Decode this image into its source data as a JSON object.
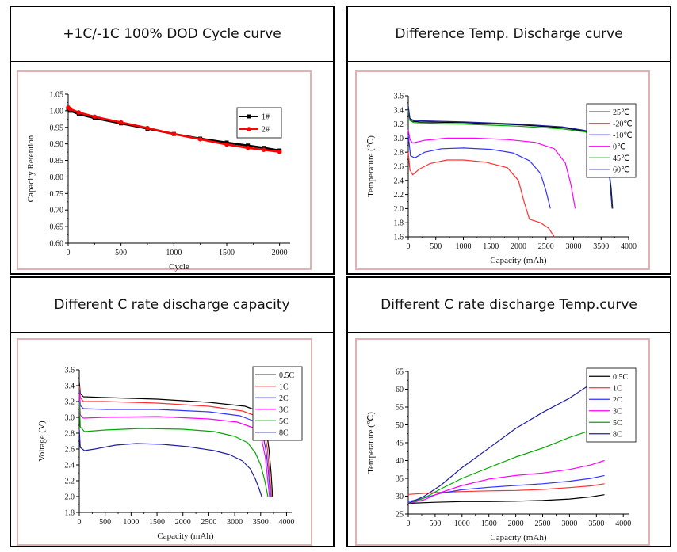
{
  "colors": {
    "frame_border": "#e2b1b1",
    "panel_border": "#000000"
  },
  "panels": {
    "p1": {
      "title": "+1C/-1C 100% DOD  Cycle curve"
    },
    "p2": {
      "title": "Difference Temp. Discharge curve"
    },
    "p3": {
      "title": "Different C rate discharge capacity"
    },
    "p4": {
      "title": "Different C rate discharge Temp.curve"
    }
  },
  "chart_data": [
    {
      "type": "line",
      "xlabel": "Cycle",
      "ylabel": "Capacity Retention",
      "xlim": [
        0,
        2100
      ],
      "ylim": [
        0.6,
        1.05
      ],
      "xticks": [
        "0",
        "500",
        "1000",
        "1500",
        "2000"
      ],
      "yticks": [
        "0.60",
        "0.65",
        "0.70",
        "0.75",
        "0.80",
        "0.85",
        "0.90",
        "0.95",
        "1.00",
        "1.05"
      ],
      "grid": false,
      "legend_position": "top-right",
      "series": [
        {
          "name": "1#",
          "color": "#000000",
          "marker": "square",
          "x": [
            0,
            20,
            100,
            250,
            500,
            750,
            1000,
            1250,
            1500,
            1700,
            1850,
            2000
          ],
          "y": [
            1.005,
            1.0,
            0.99,
            0.978,
            0.962,
            0.946,
            0.93,
            0.916,
            0.904,
            0.895,
            0.888,
            0.88
          ]
        },
        {
          "name": "2#",
          "color": "#ff0000",
          "marker": "circle",
          "x": [
            0,
            20,
            100,
            250,
            500,
            750,
            1000,
            1250,
            1500,
            1700,
            1850,
            2000
          ],
          "y": [
            1.01,
            1.005,
            0.995,
            0.982,
            0.965,
            0.948,
            0.93,
            0.914,
            0.898,
            0.888,
            0.882,
            0.876
          ]
        }
      ]
    },
    {
      "type": "line",
      "xlabel": "Capacity (mAh)",
      "ylabel": "Temperature (℃)",
      "xlim": [
        0,
        4000
      ],
      "ylim": [
        1.6,
        3.6
      ],
      "xticks": [
        "0",
        "500",
        "1000",
        "1500",
        "2000",
        "2500",
        "3000",
        "3500",
        "4000"
      ],
      "yticks": [
        "1.6",
        "1.8",
        "2.0",
        "2.2",
        "2.4",
        "2.6",
        "2.8",
        "3.0",
        "3.2",
        "3.4",
        "3.6"
      ],
      "grid": false,
      "legend_position": "top-right",
      "series": [
        {
          "name": "25℃",
          "color": "#000000",
          "x": [
            0,
            20,
            60,
            200,
            1000,
            2000,
            2800,
            3200,
            3450,
            3550,
            3620,
            3680,
            3710
          ],
          "y": [
            3.45,
            3.3,
            3.24,
            3.23,
            3.22,
            3.19,
            3.15,
            3.1,
            3.05,
            2.95,
            2.7,
            2.3,
            2.0
          ]
        },
        {
          "name": "-20℃",
          "color": "#ff3030",
          "x": [
            0,
            30,
            80,
            200,
            400,
            700,
            1000,
            1400,
            1800,
            2000,
            2100,
            2200,
            2400,
            2550,
            2650
          ],
          "y": [
            2.8,
            2.55,
            2.48,
            2.56,
            2.64,
            2.69,
            2.69,
            2.66,
            2.58,
            2.4,
            2.1,
            1.85,
            1.8,
            1.72,
            1.6
          ]
        },
        {
          "name": "-10℃",
          "color": "#3333ff",
          "x": [
            0,
            40,
            120,
            300,
            600,
            1000,
            1500,
            1900,
            2200,
            2400,
            2500,
            2580
          ],
          "y": [
            3.05,
            2.75,
            2.72,
            2.8,
            2.85,
            2.86,
            2.84,
            2.79,
            2.68,
            2.5,
            2.25,
            2.0
          ]
        },
        {
          "name": "0℃",
          "color": "#ff00ff",
          "x": [
            0,
            30,
            80,
            300,
            700,
            1200,
            1800,
            2300,
            2650,
            2850,
            2950,
            3030
          ],
          "y": [
            3.12,
            2.98,
            2.93,
            2.97,
            3.0,
            3.0,
            2.98,
            2.94,
            2.85,
            2.65,
            2.35,
            2.0
          ]
        },
        {
          "name": "45℃",
          "color": "#00aa00",
          "x": [
            0,
            30,
            100,
            500,
            1000,
            2000,
            2800,
            3200,
            3450,
            3560,
            3640,
            3700
          ],
          "y": [
            3.4,
            3.25,
            3.22,
            3.21,
            3.2,
            3.17,
            3.13,
            3.09,
            3.03,
            2.9,
            2.6,
            2.0
          ]
        },
        {
          "name": "60℃",
          "color": "#1f1fa0",
          "x": [
            0,
            30,
            100,
            500,
            1000,
            2000,
            2800,
            3200,
            3450,
            3560,
            3640,
            3700
          ],
          "y": [
            3.45,
            3.28,
            3.25,
            3.24,
            3.23,
            3.2,
            3.16,
            3.11,
            3.05,
            2.92,
            2.6,
            2.0
          ]
        }
      ]
    },
    {
      "type": "line",
      "xlabel": "Capacity (mAh)",
      "ylabel": "Voltage (V)",
      "xlim": [
        0,
        4100
      ],
      "ylim": [
        1.8,
        3.6
      ],
      "xticks": [
        "0",
        "500",
        "1000",
        "1500",
        "2000",
        "2500",
        "3000",
        "3500",
        "4000"
      ],
      "yticks": [
        "1.8",
        "2.0",
        "2.2",
        "2.4",
        "2.6",
        "2.8",
        "3.0",
        "3.2",
        "3.4",
        "3.6"
      ],
      "grid": false,
      "legend_position": "top-right",
      "series": [
        {
          "name": "0.5C",
          "color": "#000000",
          "x": [
            0,
            20,
            80,
            500,
            1500,
            2500,
            3200,
            3450,
            3600,
            3660,
            3700,
            3730
          ],
          "y": [
            3.45,
            3.3,
            3.26,
            3.25,
            3.23,
            3.19,
            3.14,
            3.08,
            2.9,
            2.6,
            2.3,
            2.0
          ]
        },
        {
          "name": "1C",
          "color": "#ff3030",
          "x": [
            0,
            20,
            80,
            500,
            1500,
            2500,
            3150,
            3400,
            3560,
            3630,
            3670,
            3710
          ],
          "y": [
            3.4,
            3.25,
            3.2,
            3.2,
            3.18,
            3.14,
            3.08,
            3.02,
            2.85,
            2.6,
            2.3,
            2.0
          ]
        },
        {
          "name": "2C",
          "color": "#3333ff",
          "x": [
            0,
            20,
            80,
            500,
            1500,
            2500,
            3100,
            3380,
            3540,
            3610,
            3650,
            3690
          ],
          "y": [
            3.35,
            3.15,
            3.11,
            3.1,
            3.1,
            3.07,
            3.02,
            2.95,
            2.8,
            2.55,
            2.3,
            2.0
          ]
        },
        {
          "name": "3C",
          "color": "#ff00ff",
          "x": [
            0,
            20,
            80,
            500,
            1500,
            2500,
            3050,
            3350,
            3520,
            3590,
            3630,
            3670
          ],
          "y": [
            3.3,
            3.03,
            2.99,
            3.0,
            3.01,
            2.98,
            2.94,
            2.87,
            2.72,
            2.5,
            2.25,
            2.0
          ]
        },
        {
          "name": "5C",
          "color": "#00aa00",
          "x": [
            0,
            20,
            100,
            500,
            1200,
            2000,
            2600,
            3000,
            3250,
            3400,
            3500,
            3580,
            3640
          ],
          "y": [
            3.2,
            2.88,
            2.82,
            2.84,
            2.86,
            2.85,
            2.82,
            2.76,
            2.68,
            2.55,
            2.4,
            2.2,
            2.0
          ]
        },
        {
          "name": "8C",
          "color": "#1f1fa0",
          "x": [
            0,
            20,
            100,
            300,
            700,
            1100,
            1600,
            2100,
            2600,
            2900,
            3150,
            3300,
            3400,
            3470,
            3520
          ],
          "y": [
            2.85,
            2.62,
            2.58,
            2.6,
            2.65,
            2.67,
            2.66,
            2.63,
            2.58,
            2.53,
            2.45,
            2.35,
            2.22,
            2.1,
            2.0
          ]
        }
      ]
    },
    {
      "type": "line",
      "xlabel": "Capacity (mAh)",
      "ylabel": "Temperature (℃)",
      "xlim": [
        0,
        4100
      ],
      "ylim": [
        25,
        65
      ],
      "xticks": [
        "0",
        "500",
        "1000",
        "1500",
        "2000",
        "2500",
        "3000",
        "3500",
        "4000"
      ],
      "yticks": [
        "25",
        "30",
        "35",
        "40",
        "45",
        "50",
        "55",
        "60",
        "65"
      ],
      "grid": false,
      "legend_position": "top-right",
      "series": [
        {
          "name": "0.5C",
          "color": "#000000",
          "x": [
            0,
            500,
            1000,
            1500,
            2000,
            2500,
            3000,
            3400,
            3650
          ],
          "y": [
            28.0,
            28.3,
            28.5,
            28.5,
            28.6,
            28.8,
            29.2,
            29.8,
            30.4
          ]
        },
        {
          "name": "1C",
          "color": "#ff3030",
          "x": [
            0,
            500,
            1000,
            1500,
            2000,
            2500,
            3000,
            3400,
            3650
          ],
          "y": [
            30.5,
            31.0,
            31.3,
            31.5,
            31.6,
            31.9,
            32.4,
            32.9,
            33.5
          ]
        },
        {
          "name": "2C",
          "color": "#3333ff",
          "x": [
            0,
            300,
            600,
            1000,
            1500,
            2000,
            2500,
            3000,
            3400,
            3650
          ],
          "y": [
            28.5,
            29.5,
            30.8,
            31.8,
            32.5,
            33.0,
            33.5,
            34.2,
            35.0,
            35.8
          ]
        },
        {
          "name": "3C",
          "color": "#ff00ff",
          "x": [
            0,
            300,
            600,
            1000,
            1500,
            2000,
            2500,
            3000,
            3400,
            3650
          ],
          "y": [
            28.0,
            29.0,
            31.0,
            33.0,
            34.8,
            35.8,
            36.5,
            37.5,
            38.8,
            40.0
          ]
        },
        {
          "name": "5C",
          "color": "#00aa00",
          "x": [
            0,
            300,
            600,
            1000,
            1500,
            2000,
            2500,
            3000,
            3400,
            3650
          ],
          "y": [
            28.0,
            29.5,
            32.0,
            35.0,
            38.0,
            41.0,
            43.5,
            46.5,
            48.5,
            50.3
          ]
        },
        {
          "name": "8C",
          "color": "#1f1fa0",
          "x": [
            0,
            300,
            600,
            1000,
            1500,
            2000,
            2500,
            3000,
            3300,
            3500
          ],
          "y": [
            28.0,
            30.0,
            33.0,
            38.0,
            43.5,
            49.0,
            53.5,
            57.5,
            60.5,
            62.5
          ]
        }
      ]
    }
  ]
}
